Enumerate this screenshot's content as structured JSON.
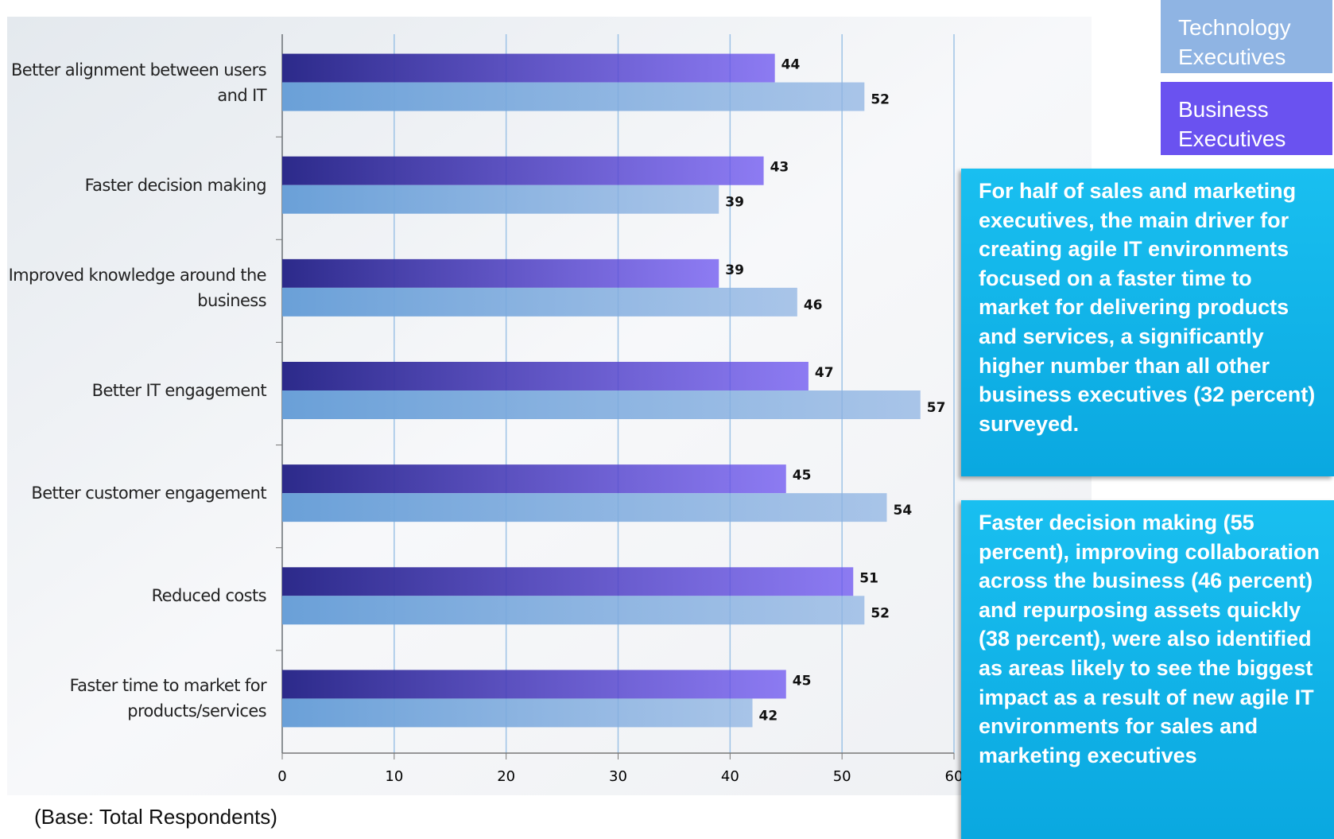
{
  "chart_data": {
    "type": "bar",
    "orientation": "horizontal",
    "categories": [
      "Better alignment between users and IT",
      "Faster decision making",
      "Improved knowledge around the business",
      "Better IT engagement",
      "Better customer engagement",
      "Reduced costs",
      "Faster time to market for products/services"
    ],
    "series": [
      {
        "name": "Business Executives",
        "color": "#6a52f0",
        "values": [
          44,
          43,
          39,
          47,
          45,
          51,
          45
        ]
      },
      {
        "name": "Technology Executives",
        "color": "#8fb4e3",
        "values": [
          52,
          39,
          46,
          57,
          54,
          52,
          42
        ]
      }
    ],
    "xlim": [
      0,
      60
    ],
    "xticks": [
      0,
      10,
      20,
      30,
      40,
      50,
      60
    ],
    "grid": true,
    "note": "(Base: Total Respondents)",
    "callouts": [
      "For half of sales and marketing executives, the main driver for creating agile IT environments focused on a faster time to market for delivering products and services, a significantly higher number than all other business executives (32 percent) surveyed.",
      "Faster decision making (55 percent), improving collaboration across the business (46 percent) and repurposing assets quickly (38 percent), were also identified as areas likely to see the biggest impact as a result of new agile IT environments for sales and marketing executives"
    ]
  }
}
